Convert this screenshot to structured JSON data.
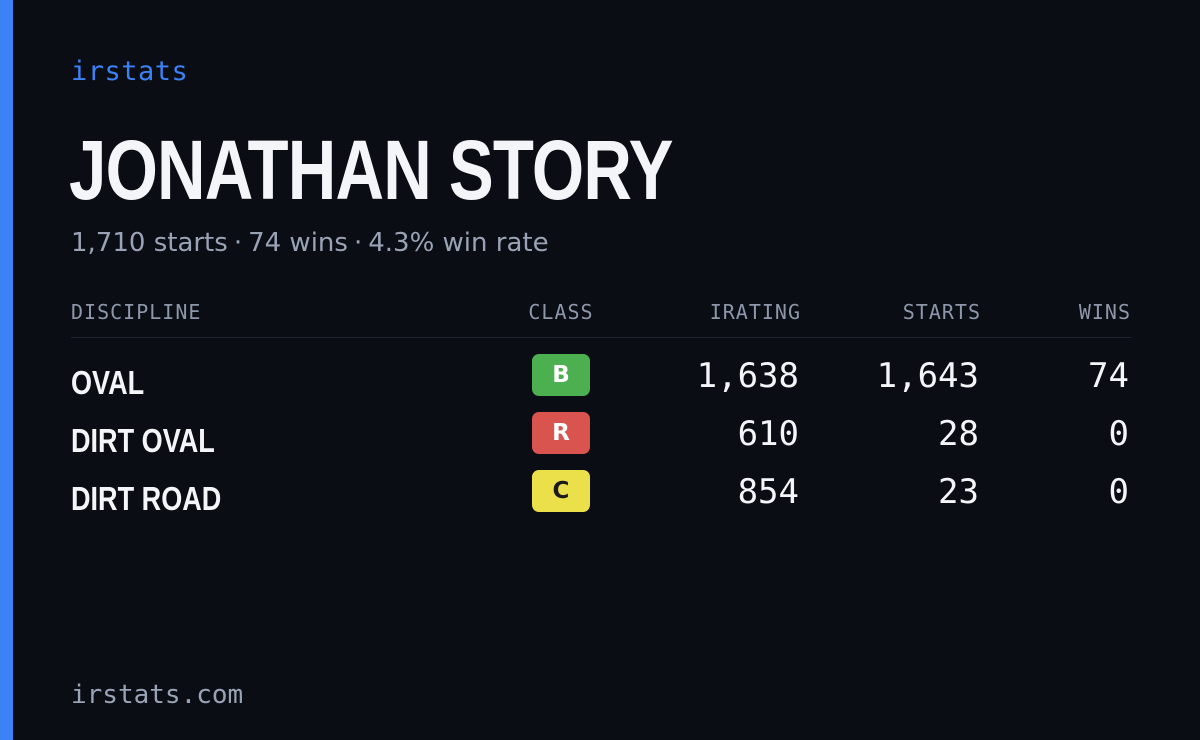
{
  "brand": "irstats",
  "driver": {
    "name": "JONATHAN STORY",
    "starts": "1,710 starts",
    "wins": "74 wins",
    "win_rate": "4.3% win rate",
    "separator": "·"
  },
  "table": {
    "headers": {
      "discipline": "DISCIPLINE",
      "class": "CLASS",
      "irating": "IRATING",
      "starts": "STARTS",
      "wins": "WINS"
    },
    "rows": [
      {
        "discipline": "OVAL",
        "class": "B",
        "class_color": "#4caf50",
        "irating": "1,638",
        "starts": "1,643",
        "wins": "74"
      },
      {
        "discipline": "DIRT OVAL",
        "class": "R",
        "class_color": "#d9534f",
        "irating": "610",
        "starts": "28",
        "wins": "0"
      },
      {
        "discipline": "DIRT ROAD",
        "class": "C",
        "class_color": "#ebe04a",
        "irating": "854",
        "starts": "23",
        "wins": "0"
      }
    ]
  },
  "footer": {
    "url": "irstats.com"
  },
  "colors": {
    "accent": "#3b82f6",
    "background": "#0b0d14",
    "muted_text": "#9aa3b5"
  }
}
